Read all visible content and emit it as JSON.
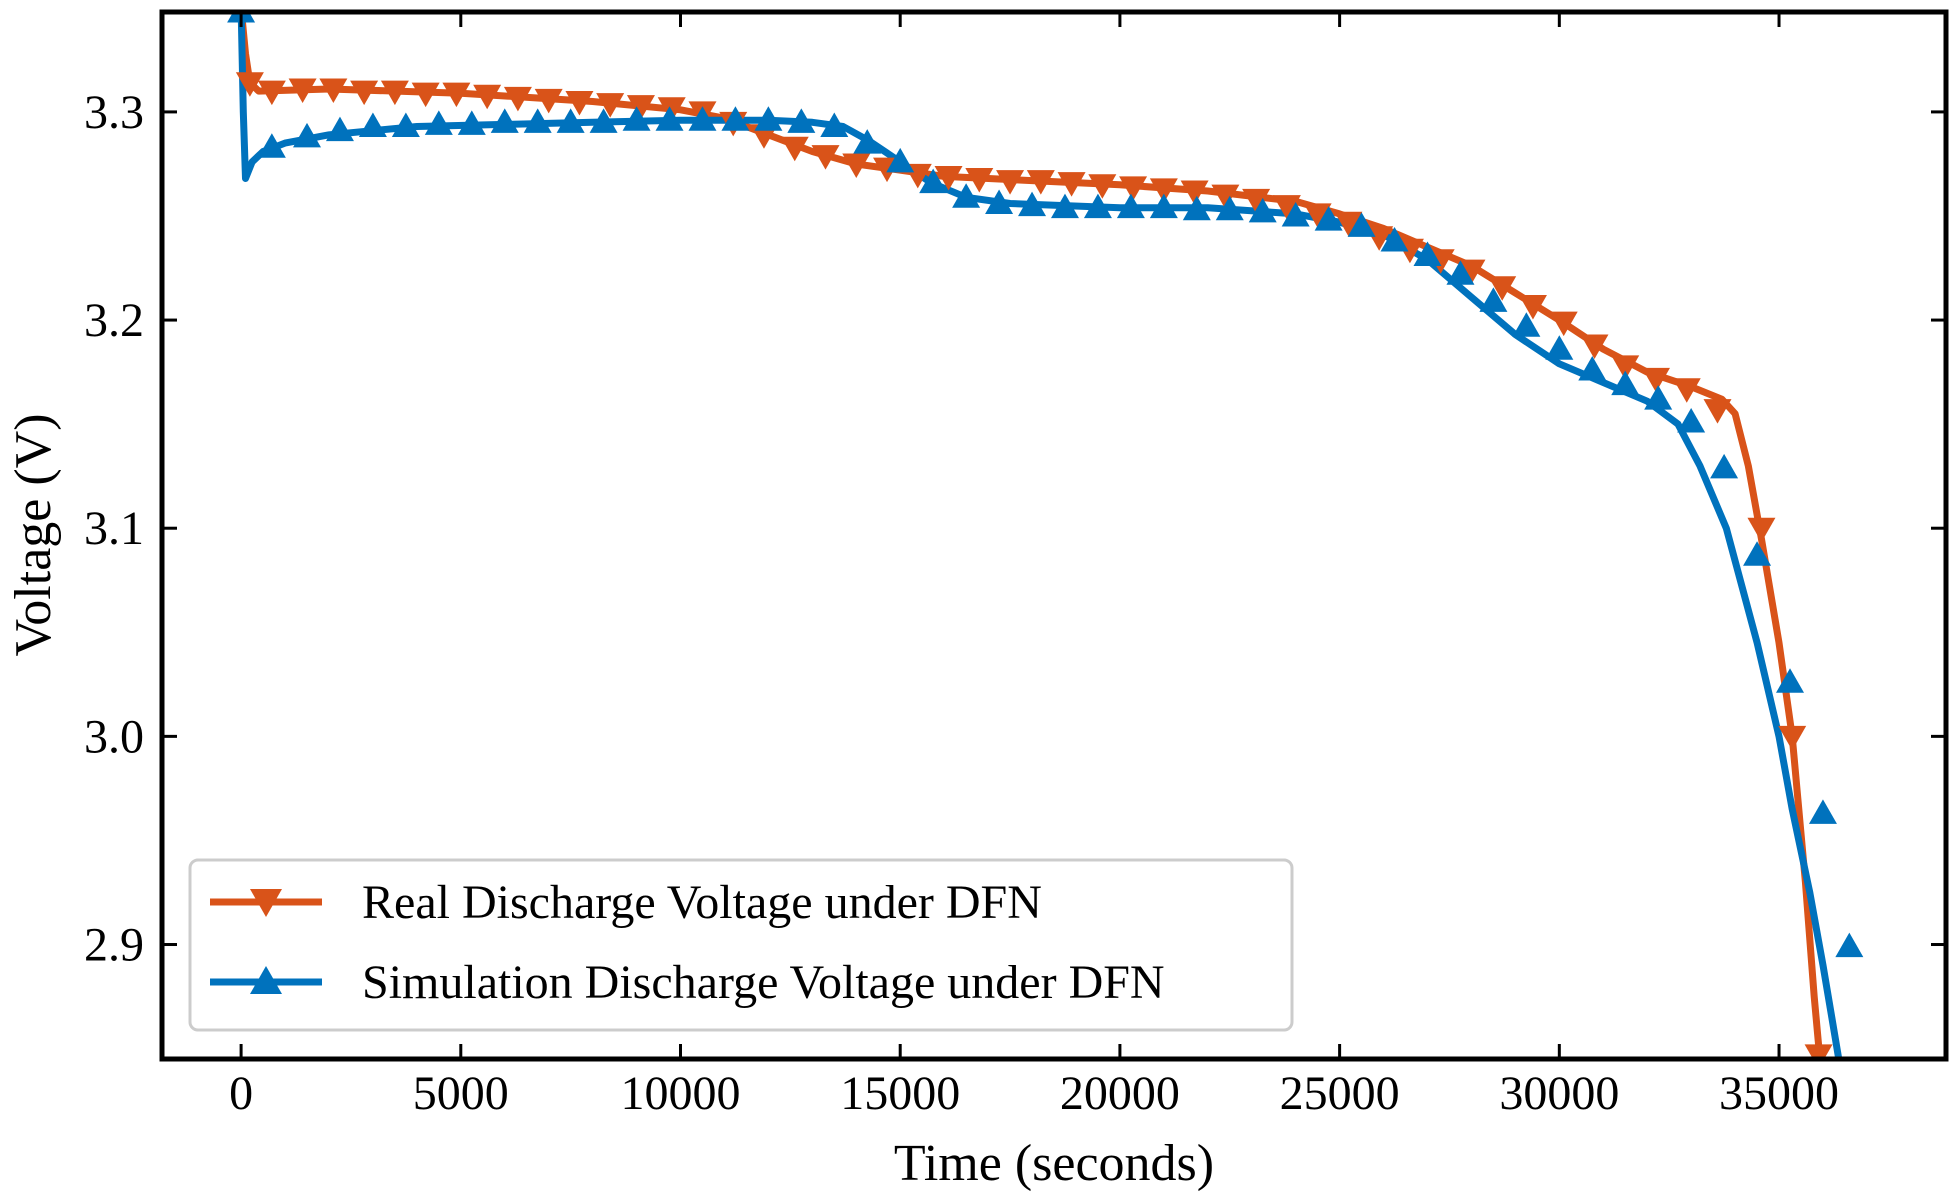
{
  "chart_data": {
    "type": "line",
    "title": "",
    "xlabel": "Time (seconds)",
    "ylabel": "Voltage (V)",
    "xlim": [
      -1800,
      38800
    ],
    "ylim": [
      2.845,
      3.348
    ],
    "xticks": [
      0,
      5000,
      10000,
      15000,
      20000,
      25000,
      30000,
      35000
    ],
    "xtick_labels": [
      "0",
      "5000",
      "10000",
      "15000",
      "20000",
      "25000",
      "30000",
      "35000"
    ],
    "yticks": [
      2.9,
      3.0,
      3.1,
      3.2,
      3.3
    ],
    "ytick_labels": [
      "2.9",
      "3.0",
      "3.1",
      "3.2",
      "3.3"
    ],
    "grid": false,
    "legend_position": "lower-left",
    "series": [
      {
        "name": "Real Discharge Voltage under DFN",
        "color": "#d95319",
        "marker": "triangle-down",
        "line_points": [
          [
            0,
            3.35
          ],
          [
            100,
            3.328
          ],
          [
            200,
            3.314
          ],
          [
            400,
            3.31
          ],
          [
            2000,
            3.311
          ],
          [
            5000,
            3.309
          ],
          [
            8000,
            3.305
          ],
          [
            10000,
            3.301
          ],
          [
            11000,
            3.297
          ],
          [
            12000,
            3.289
          ],
          [
            13000,
            3.281
          ],
          [
            14000,
            3.275
          ],
          [
            15000,
            3.272
          ],
          [
            16000,
            3.269
          ],
          [
            18000,
            3.267
          ],
          [
            20000,
            3.265
          ],
          [
            22000,
            3.262
          ],
          [
            24000,
            3.257
          ],
          [
            25000,
            3.251
          ],
          [
            26000,
            3.244
          ],
          [
            27000,
            3.235
          ],
          [
            28000,
            3.226
          ],
          [
            29000,
            3.213
          ],
          [
            30000,
            3.2
          ],
          [
            31000,
            3.186
          ],
          [
            32000,
            3.175
          ],
          [
            33000,
            3.168
          ],
          [
            33700,
            3.162
          ],
          [
            34000,
            3.155
          ],
          [
            34300,
            3.13
          ],
          [
            34600,
            3.095
          ],
          [
            35000,
            3.045
          ],
          [
            35300,
            3.0
          ],
          [
            35600,
            2.93
          ],
          [
            35800,
            2.875
          ],
          [
            35950,
            2.84
          ]
        ],
        "markers": [
          [
            200,
            3.314
          ],
          [
            700,
            3.31
          ],
          [
            1400,
            3.311
          ],
          [
            2100,
            3.311
          ],
          [
            2800,
            3.31
          ],
          [
            3500,
            3.31
          ],
          [
            4200,
            3.309
          ],
          [
            4900,
            3.309
          ],
          [
            5600,
            3.308
          ],
          [
            6300,
            3.307
          ],
          [
            7000,
            3.306
          ],
          [
            7700,
            3.305
          ],
          [
            8400,
            3.304
          ],
          [
            9100,
            3.303
          ],
          [
            9800,
            3.302
          ],
          [
            10500,
            3.3
          ],
          [
            11200,
            3.295
          ],
          [
            11900,
            3.289
          ],
          [
            12600,
            3.283
          ],
          [
            13300,
            3.279
          ],
          [
            14000,
            3.275
          ],
          [
            14700,
            3.273
          ],
          [
            15400,
            3.27
          ],
          [
            16100,
            3.269
          ],
          [
            16800,
            3.268
          ],
          [
            17500,
            3.267
          ],
          [
            18200,
            3.267
          ],
          [
            18900,
            3.266
          ],
          [
            19600,
            3.265
          ],
          [
            20300,
            3.264
          ],
          [
            21000,
            3.263
          ],
          [
            21700,
            3.262
          ],
          [
            22400,
            3.26
          ],
          [
            23100,
            3.258
          ],
          [
            23800,
            3.255
          ],
          [
            24500,
            3.251
          ],
          [
            25200,
            3.247
          ],
          [
            25900,
            3.24
          ],
          [
            26600,
            3.234
          ],
          [
            27300,
            3.229
          ],
          [
            28000,
            3.224
          ],
          [
            28700,
            3.216
          ],
          [
            29400,
            3.207
          ],
          [
            30100,
            3.199
          ],
          [
            30800,
            3.188
          ],
          [
            31500,
            3.178
          ],
          [
            32200,
            3.172
          ],
          [
            32900,
            3.167
          ],
          [
            33600,
            3.157
          ],
          [
            34600,
            3.1
          ],
          [
            35300,
            3.0
          ],
          [
            35900,
            2.847
          ]
        ]
      },
      {
        "name": "Simulation Discharge Voltage under DFN",
        "color": "#0072bd",
        "marker": "triangle-up",
        "line_points": [
          [
            0,
            3.35
          ],
          [
            50,
            3.3
          ],
          [
            100,
            3.268
          ],
          [
            250,
            3.276
          ],
          [
            500,
            3.281
          ],
          [
            1000,
            3.285
          ],
          [
            2000,
            3.289
          ],
          [
            4000,
            3.293
          ],
          [
            6000,
            3.294
          ],
          [
            8000,
            3.295
          ],
          [
            10000,
            3.296
          ],
          [
            12000,
            3.296
          ],
          [
            13000,
            3.295
          ],
          [
            13700,
            3.293
          ],
          [
            14300,
            3.286
          ],
          [
            15000,
            3.276
          ],
          [
            15700,
            3.266
          ],
          [
            16500,
            3.259
          ],
          [
            17500,
            3.256
          ],
          [
            20000,
            3.254
          ],
          [
            22000,
            3.254
          ],
          [
            24000,
            3.251
          ],
          [
            25000,
            3.247
          ],
          [
            26000,
            3.241
          ],
          [
            27000,
            3.229
          ],
          [
            28000,
            3.211
          ],
          [
            29000,
            3.193
          ],
          [
            30000,
            3.179
          ],
          [
            31000,
            3.17
          ],
          [
            32000,
            3.161
          ],
          [
            32700,
            3.15
          ],
          [
            33200,
            3.13
          ],
          [
            33800,
            3.1
          ],
          [
            34500,
            3.045
          ],
          [
            35000,
            3.0
          ],
          [
            35300,
            2.965
          ],
          [
            35700,
            2.925
          ],
          [
            36000,
            2.89
          ],
          [
            36200,
            2.865
          ],
          [
            36400,
            2.84
          ]
        ],
        "markers": [
          [
            0,
            3.348
          ],
          [
            700,
            3.283
          ],
          [
            1500,
            3.288
          ],
          [
            2250,
            3.291
          ],
          [
            3000,
            3.293
          ],
          [
            3750,
            3.293
          ],
          [
            4500,
            3.294
          ],
          [
            5250,
            3.294
          ],
          [
            6000,
            3.295
          ],
          [
            6750,
            3.295
          ],
          [
            7500,
            3.295
          ],
          [
            8250,
            3.295
          ],
          [
            9000,
            3.296
          ],
          [
            9750,
            3.296
          ],
          [
            10500,
            3.296
          ],
          [
            11250,
            3.296
          ],
          [
            12000,
            3.296
          ],
          [
            12750,
            3.295
          ],
          [
            13500,
            3.293
          ],
          [
            14250,
            3.285
          ],
          [
            15000,
            3.276
          ],
          [
            15750,
            3.266
          ],
          [
            16500,
            3.259
          ],
          [
            17250,
            3.256
          ],
          [
            18000,
            3.255
          ],
          [
            18750,
            3.254
          ],
          [
            19500,
            3.254
          ],
          [
            20250,
            3.254
          ],
          [
            21000,
            3.254
          ],
          [
            21750,
            3.253
          ],
          [
            22500,
            3.253
          ],
          [
            23250,
            3.252
          ],
          [
            24000,
            3.25
          ],
          [
            24750,
            3.248
          ],
          [
            25500,
            3.245
          ],
          [
            26250,
            3.238
          ],
          [
            27000,
            3.231
          ],
          [
            27750,
            3.222
          ],
          [
            28500,
            3.209
          ],
          [
            29250,
            3.197
          ],
          [
            30000,
            3.186
          ],
          [
            30750,
            3.176
          ],
          [
            31500,
            3.169
          ],
          [
            32250,
            3.162
          ],
          [
            33000,
            3.151
          ],
          [
            33750,
            3.129
          ],
          [
            34500,
            3.087
          ],
          [
            35250,
            3.026
          ],
          [
            36000,
            2.963
          ],
          [
            36600,
            2.899
          ]
        ]
      }
    ]
  }
}
